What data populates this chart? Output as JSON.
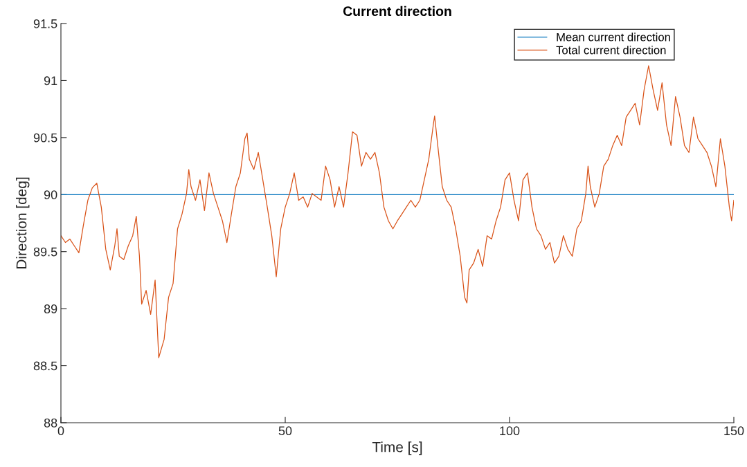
{
  "chart_data": {
    "type": "line",
    "title": "Current direction",
    "xlabel": "Time [s]",
    "ylabel": "Direction [deg]",
    "xlim": [
      0,
      150
    ],
    "xticks": [
      0,
      50,
      100,
      150
    ],
    "ylim": [
      88,
      91.5
    ],
    "yticks": [
      88,
      88.5,
      89,
      89.5,
      90,
      90.5,
      91,
      91.5
    ],
    "grid": false,
    "legend": "top right",
    "marker": "none",
    "line_style": "solid",
    "series": [
      {
        "name": "Mean current direction",
        "color": "#0072bd",
        "x": [
          0,
          150
        ],
        "values": [
          90,
          90
        ]
      },
      {
        "name": "Total current direction",
        "color": "#d95319",
        "x": [
          0,
          1,
          2,
          3,
          4,
          5,
          6,
          7,
          8,
          9,
          10,
          11,
          12,
          12.5,
          13,
          14,
          15,
          16,
          16.8,
          17.5,
          18,
          19,
          20,
          21,
          21.8,
          23,
          24,
          25,
          26,
          27,
          28,
          28.5,
          29,
          30,
          31,
          32,
          33,
          34,
          35,
          36,
          37,
          38,
          39,
          40,
          41,
          41.5,
          42,
          43,
          44,
          45,
          46,
          47,
          48,
          49,
          50,
          51,
          52,
          53,
          54,
          55,
          56,
          58,
          59,
          60,
          61,
          62,
          63,
          64,
          65,
          66,
          67,
          68,
          69,
          70,
          71,
          72,
          73,
          74,
          75,
          76,
          77,
          78,
          79,
          80,
          81,
          82,
          83,
          83.3,
          84,
          85,
          86,
          87,
          88,
          89,
          90,
          90.5,
          91,
          92,
          93,
          94,
          95,
          96,
          97,
          98,
          99,
          100,
          101,
          102,
          103,
          104,
          105,
          106,
          107,
          108,
          109,
          110,
          111,
          112,
          113,
          114,
          115,
          116,
          117,
          117.5,
          118,
          119,
          120,
          121,
          122,
          123,
          124,
          125,
          126,
          127,
          128,
          129,
          130,
          131,
          132,
          133,
          134,
          135,
          136,
          137,
          138,
          139,
          140,
          141,
          142,
          143,
          144,
          145,
          146,
          147,
          148,
          149,
          149.5,
          150
        ],
        "values": [
          89.64,
          89.58,
          89.61,
          89.55,
          89.49,
          89.73,
          89.95,
          90.06,
          90.1,
          89.89,
          89.52,
          89.34,
          89.55,
          89.7,
          89.46,
          89.43,
          89.55,
          89.64,
          89.81,
          89.46,
          89.04,
          89.16,
          88.95,
          89.25,
          88.57,
          88.73,
          89.1,
          89.22,
          89.7,
          89.83,
          90.01,
          90.22,
          90.07,
          89.95,
          90.13,
          89.86,
          90.19,
          90.01,
          89.89,
          89.77,
          89.58,
          89.83,
          90.07,
          90.19,
          90.49,
          90.54,
          90.31,
          90.22,
          90.37,
          90.13,
          89.89,
          89.64,
          89.28,
          89.7,
          89.89,
          90.01,
          90.19,
          89.95,
          89.98,
          89.89,
          90.01,
          89.95,
          90.25,
          90.13,
          89.89,
          90.07,
          89.89,
          90.19,
          90.55,
          90.52,
          90.25,
          90.37,
          90.31,
          90.37,
          90.19,
          89.89,
          89.77,
          89.7,
          89.77,
          89.83,
          89.89,
          89.95,
          89.89,
          89.95,
          90.13,
          90.31,
          90.61,
          90.69,
          90.43,
          90.07,
          89.95,
          89.89,
          89.7,
          89.46,
          89.1,
          89.05,
          89.34,
          89.4,
          89.52,
          89.37,
          89.64,
          89.61,
          89.77,
          89.89,
          90.13,
          90.19,
          89.95,
          89.77,
          90.13,
          90.19,
          89.89,
          89.7,
          89.64,
          89.52,
          89.58,
          89.4,
          89.46,
          89.64,
          89.52,
          89.46,
          89.7,
          89.77,
          90.01,
          90.25,
          90.07,
          89.89,
          90.01,
          90.25,
          90.31,
          90.43,
          90.52,
          90.43,
          90.68,
          90.74,
          90.8,
          90.61,
          90.92,
          91.13,
          90.92,
          90.74,
          90.98,
          90.61,
          90.43,
          90.86,
          90.68,
          90.43,
          90.37,
          90.68,
          90.49,
          90.43,
          90.37,
          90.25,
          90.07,
          90.49,
          90.25,
          89.89,
          89.77,
          89.95
        ]
      }
    ]
  }
}
